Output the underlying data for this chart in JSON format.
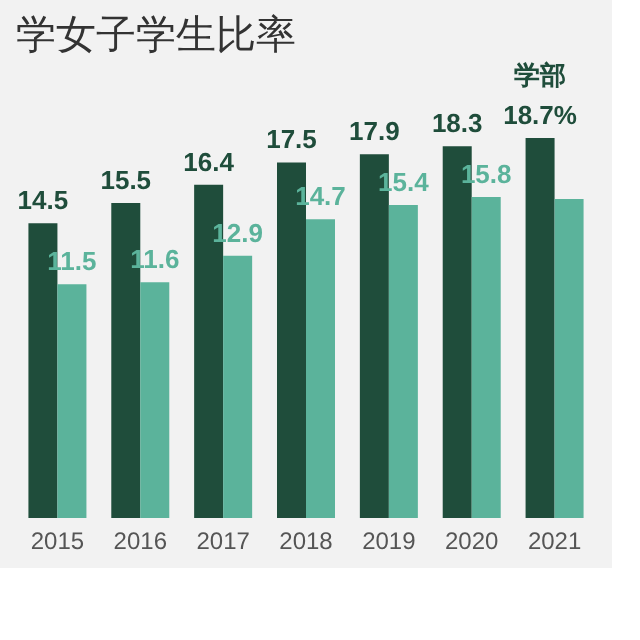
{
  "chart_data": {
    "type": "bar",
    "title": "学女子学生比率",
    "categories": [
      "2015",
      "2016",
      "2017",
      "2018",
      "2019",
      "2020",
      "2021"
    ],
    "series": [
      {
        "name": "学部",
        "color": "#1f4d3b",
        "values": [
          14.5,
          15.5,
          16.4,
          17.5,
          17.9,
          18.3,
          18.7
        ],
        "value_labels": [
          "14.5",
          "15.5",
          "16.4",
          "17.5",
          "17.9",
          "18.3",
          "18.7%"
        ]
      },
      {
        "color": "#5bb39b",
        "values": [
          11.5,
          11.6,
          12.9,
          14.7,
          15.4,
          15.8,
          15.7
        ],
        "value_labels": [
          "11.5",
          "11.6",
          "12.9",
          "14.7",
          "15.4",
          "15.8",
          null
        ]
      }
    ],
    "tick_labels": "x",
    "grid": false,
    "legend": false
  }
}
